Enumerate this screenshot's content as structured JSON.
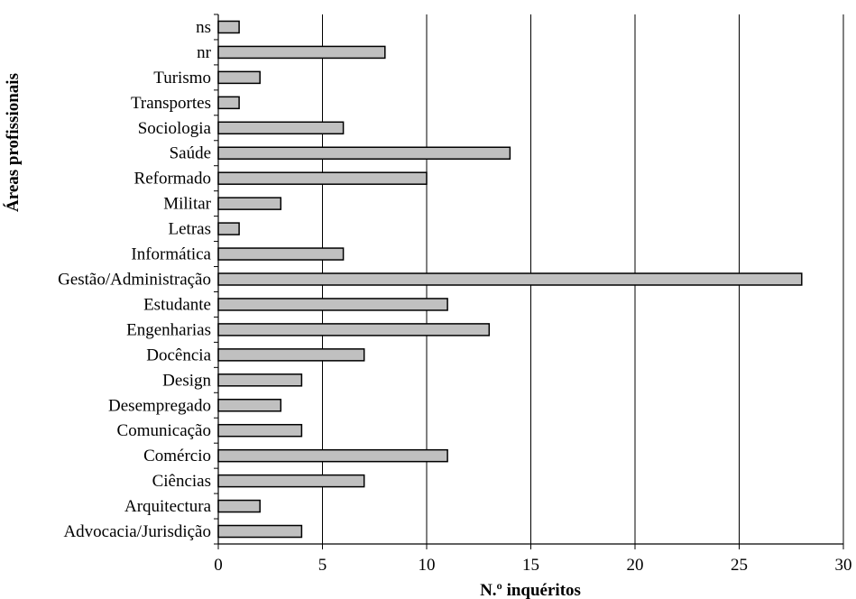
{
  "chart_data": {
    "type": "bar",
    "orientation": "horizontal",
    "categories": [
      "ns",
      "nr",
      "Turismo",
      "Transportes",
      "Sociologia",
      "Saúde",
      "Reformado",
      "Militar",
      "Letras",
      "Informática",
      "Gestão/Administração",
      "Estudante",
      "Engenharias",
      "Docência",
      "Design",
      "Desempregado",
      "Comunicação",
      "Comércio",
      "Ciências",
      "Arquitectura",
      "Advocacia/Jurisdição"
    ],
    "values": [
      1,
      8,
      2,
      1,
      6,
      14,
      10,
      3,
      1,
      6,
      28,
      11,
      13,
      7,
      4,
      3,
      4,
      11,
      7,
      2,
      4
    ],
    "xlabel": "N.º inquéritos",
    "ylabel": "Áreas profissionais",
    "xlim": [
      0,
      30
    ],
    "xticks": [
      0,
      5,
      10,
      15,
      20,
      25,
      30
    ],
    "grid": "vertical",
    "legend": "none",
    "colors": {
      "bar_fill": "#c0c0c0",
      "bar_stroke": "#000000",
      "grid": "#000000",
      "axis": "#000000"
    }
  }
}
